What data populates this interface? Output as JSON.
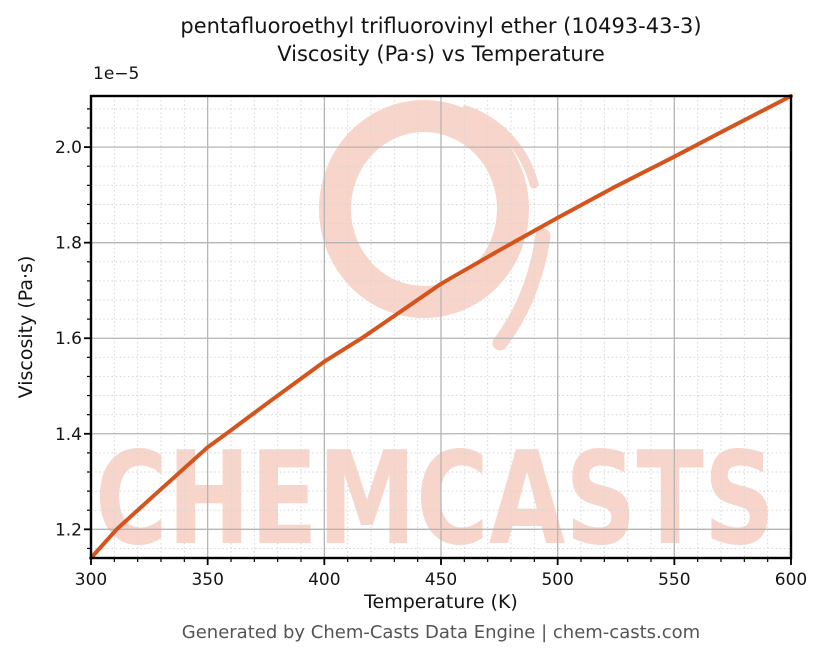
{
  "header": {
    "title_line1": "pentafluoroethyl trifluorovinyl ether (10493-43-3)",
    "title_line2": "Viscosity (Pa·s) vs Temperature"
  },
  "footer": {
    "credit": "Generated by Chem-Casts Data Engine | chem-casts.com"
  },
  "watermark": {
    "text": "CHEMCASTS",
    "color": "#f8d5cb"
  },
  "colors": {
    "curve": "#d5541d",
    "grid_major": "#b5b5b5",
    "grid_minor": "#d6d6d6",
    "axis": "#000000",
    "tick_label": "#141414",
    "footer_text": "#545454"
  },
  "chart_data": {
    "type": "line",
    "title": "pentafluoroethyl trifluorovinyl ether (10493-43-3) Viscosity (Pa·s) vs Temperature",
    "xlabel": "Temperature (K)",
    "ylabel": "Viscosity (Pa·s)",
    "y_offset_label": "1e−5",
    "y_scale_factor": 1e-05,
    "xlim": [
      300,
      600
    ],
    "ylim_scaled": [
      1.14,
      2.107
    ],
    "x_major_ticks": [
      300,
      350,
      400,
      450,
      500,
      550,
      600
    ],
    "x_minor_step": 10,
    "y_major_ticks": [
      1.2,
      1.4,
      1.6,
      1.8,
      2.0
    ],
    "y_minor_step": 0.04,
    "grid": {
      "major": true,
      "minor_dotted": true
    },
    "legend": "none",
    "series": [
      {
        "name": "viscosity-vs-temperature",
        "color": "#d5541d",
        "points_T_K_vs_eta_1e5_Pa_s": [
          [
            300,
            1.14
          ],
          [
            311,
            1.2
          ],
          [
            325,
            1.262
          ],
          [
            350,
            1.372
          ],
          [
            358,
            1.4
          ],
          [
            375,
            1.462
          ],
          [
            400,
            1.551
          ],
          [
            416,
            1.6
          ],
          [
            425,
            1.63
          ],
          [
            450,
            1.714
          ],
          [
            475,
            1.784
          ],
          [
            500,
            1.852
          ],
          [
            525,
            1.918
          ],
          [
            550,
            1.98
          ],
          [
            575,
            2.044
          ],
          [
            600,
            2.107
          ]
        ]
      }
    ]
  }
}
